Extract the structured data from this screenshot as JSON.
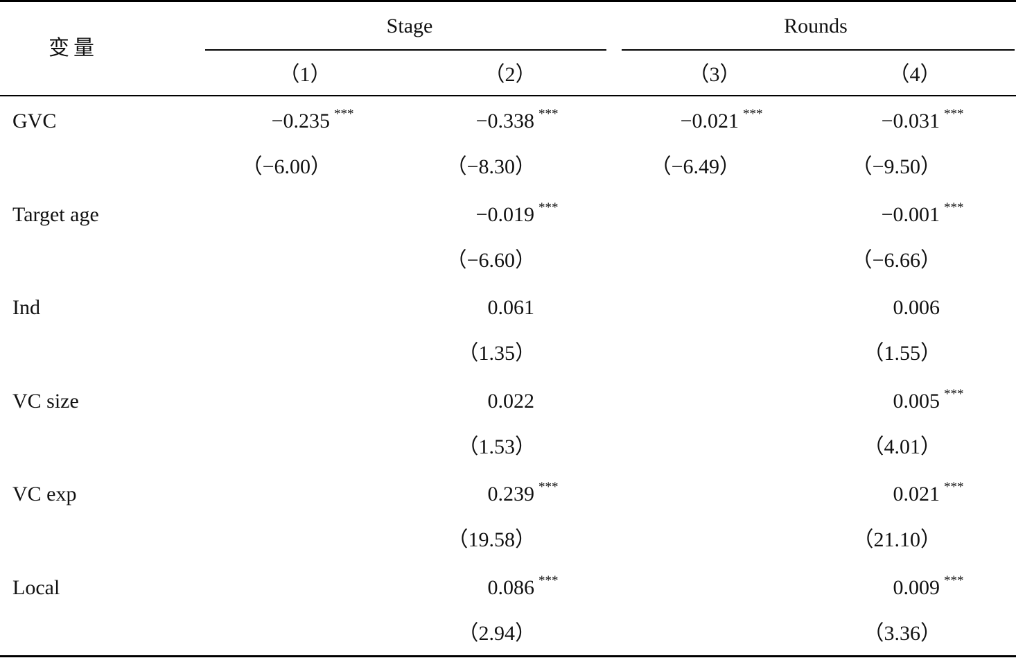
{
  "header": {
    "var_label": "变量",
    "groups": [
      {
        "label": "Stage",
        "columns": [
          "（1）",
          "（2）"
        ]
      },
      {
        "label": "Rounds",
        "columns": [
          "（3）",
          "（4）"
        ]
      }
    ]
  },
  "rows": [
    {
      "variable": "GVC",
      "coef": [
        {
          "v": "−0.235",
          "s": "***"
        },
        {
          "v": "−0.338",
          "s": "***"
        },
        {
          "v": "−0.021",
          "s": "***"
        },
        {
          "v": "−0.031",
          "s": "***"
        }
      ],
      "t": [
        "（−6.00）",
        "（−8.30）",
        "（−6.49）",
        "（−9.50）"
      ]
    },
    {
      "variable": "Target age",
      "coef": [
        {
          "v": "",
          "s": ""
        },
        {
          "v": "−0.019",
          "s": "***"
        },
        {
          "v": "",
          "s": ""
        },
        {
          "v": "−0.001",
          "s": "***"
        }
      ],
      "t": [
        "",
        "（−6.60）",
        "",
        "（−6.66）"
      ]
    },
    {
      "variable": "Ind",
      "coef": [
        {
          "v": "",
          "s": ""
        },
        {
          "v": "0.061",
          "s": ""
        },
        {
          "v": "",
          "s": ""
        },
        {
          "v": "0.006",
          "s": ""
        }
      ],
      "t": [
        "",
        "（1.35）",
        "",
        "（1.55）"
      ]
    },
    {
      "variable": "VC size",
      "coef": [
        {
          "v": "",
          "s": ""
        },
        {
          "v": "0.022",
          "s": ""
        },
        {
          "v": "",
          "s": ""
        },
        {
          "v": "0.005",
          "s": "***"
        }
      ],
      "t": [
        "",
        "（1.53）",
        "",
        "（4.01）"
      ]
    },
    {
      "variable": "VC exp",
      "coef": [
        {
          "v": "",
          "s": ""
        },
        {
          "v": "0.239",
          "s": "***"
        },
        {
          "v": "",
          "s": ""
        },
        {
          "v": "0.021",
          "s": "***"
        }
      ],
      "t": [
        "",
        "（19.58）",
        "",
        "（21.10）"
      ]
    },
    {
      "variable": "Local",
      "coef": [
        {
          "v": "",
          "s": ""
        },
        {
          "v": "0.086",
          "s": "***"
        },
        {
          "v": "",
          "s": ""
        },
        {
          "v": "0.009",
          "s": "***"
        }
      ],
      "t": [
        "",
        "（2.94）",
        "",
        "（3.36）"
      ]
    }
  ]
}
